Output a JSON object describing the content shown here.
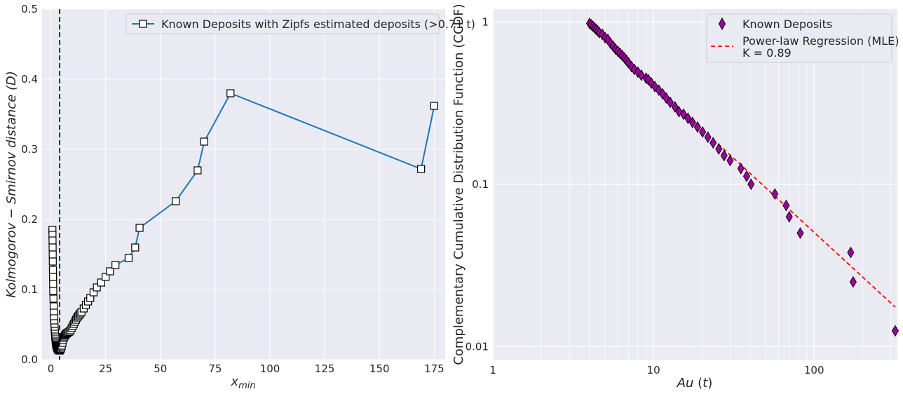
{
  "chart_data": [
    {
      "type": "line",
      "xlabel": "x_min",
      "ylabel": "Kolmogorov − Smirnov distance (D)",
      "xlim": [
        -4,
        180
      ],
      "ylim": [
        0,
        0.5
      ],
      "xticks": [
        0,
        25,
        50,
        75,
        100,
        125,
        150,
        175
      ],
      "yticks": [
        0.0,
        0.1,
        0.2,
        0.3,
        0.4,
        0.5
      ],
      "grid": true,
      "legend_position": "top-right",
      "vline": {
        "x": 4.0,
        "style": "dashed",
        "color": "#0000cc"
      },
      "series": [
        {
          "name": "Known Deposits with Zipfs estimated deposits (>0.71 t)",
          "color": "#1f77b4",
          "marker": "square",
          "x": [
            0.72,
            0.75,
            0.78,
            0.82,
            0.86,
            0.9,
            0.95,
            1.0,
            1.05,
            1.1,
            1.2,
            1.3,
            1.4,
            1.5,
            1.6,
            1.7,
            1.8,
            1.9,
            2.0,
            2.1,
            2.2,
            2.3,
            2.4,
            2.5,
            2.6,
            2.7,
            2.8,
            2.9,
            3.0,
            3.1,
            3.2,
            3.3,
            3.4,
            3.5,
            3.6,
            3.8,
            4.0,
            4.2,
            4.4,
            4.6,
            4.8,
            5.0,
            5.3,
            5.6,
            5.9,
            6.2,
            6.5,
            6.8,
            7.1,
            7.5,
            8.0,
            8.5,
            9.0,
            9.5,
            10.0,
            10.5,
            11.0,
            11.5,
            12.0,
            12.5,
            13.0,
            13.5,
            14.0,
            15.0,
            16.0,
            17.0,
            18.0,
            19.5,
            21.0,
            23.0,
            25.0,
            27.0,
            29.5,
            35.5,
            38.5,
            40.5,
            57.0,
            67.0,
            70.0,
            82.0,
            169.0,
            175.0
          ],
          "y": [
            0.185,
            0.178,
            0.17,
            0.16,
            0.15,
            0.14,
            0.128,
            0.118,
            0.108,
            0.098,
            0.087,
            0.076,
            0.067,
            0.059,
            0.052,
            0.046,
            0.041,
            0.037,
            0.033,
            0.03,
            0.027,
            0.025,
            0.023,
            0.021,
            0.02,
            0.019,
            0.018,
            0.017,
            0.016,
            0.016,
            0.015,
            0.015,
            0.014,
            0.014,
            0.014,
            0.013,
            0.013,
            0.014,
            0.015,
            0.016,
            0.018,
            0.02,
            0.024,
            0.028,
            0.031,
            0.033,
            0.035,
            0.036,
            0.037,
            0.038,
            0.039,
            0.04,
            0.042,
            0.045,
            0.048,
            0.051,
            0.054,
            0.057,
            0.06,
            0.062,
            0.064,
            0.066,
            0.068,
            0.073,
            0.078,
            0.083,
            0.088,
            0.096,
            0.103,
            0.11,
            0.118,
            0.126,
            0.135,
            0.145,
            0.16,
            0.188,
            0.226,
            0.27,
            0.311,
            0.38,
            0.272,
            0.362
          ]
        }
      ]
    },
    {
      "type": "scatter",
      "xlabel": "Au (t)",
      "ylabel": "Complementary Cumulative Distribution Function (CCDF)",
      "xscale": "log",
      "yscale": "log",
      "xlim": [
        1,
        330
      ],
      "ylim": [
        0.0083,
        1.2
      ],
      "xticks": [
        1,
        10,
        100
      ],
      "xtick_labels": [
        "1",
        "10",
        "100"
      ],
      "yticks": [
        0.01,
        0.1,
        1
      ],
      "ytick_labels": [
        "0.01",
        "0.1",
        "1"
      ],
      "grid": true,
      "legend_position": "top-right",
      "series": [
        {
          "name": "Known Deposits",
          "marker": "thin-diamond",
          "color": "#9b009b",
          "x": [
            4.0,
            4.1,
            4.2,
            4.3,
            4.4,
            4.5,
            4.6,
            4.8,
            5.0,
            5.2,
            5.4,
            5.6,
            5.8,
            6.0,
            6.2,
            6.4,
            6.6,
            6.8,
            7.0,
            7.3,
            7.6,
            8.0,
            8.4,
            9.0,
            9.3,
            9.7,
            10.2,
            10.8,
            11.4,
            12.0,
            12.7,
            13.6,
            14.4,
            15.4,
            16.4,
            17.5,
            18.8,
            20.2,
            21.8,
            23.5,
            25.5,
            27.5,
            30.0,
            35.0,
            38.0,
            40.5,
            57.0,
            67.0,
            70.0,
            82.0,
            169.0,
            175.0,
            320.0
          ],
          "y": [
            0.98,
            0.96,
            0.94,
            0.92,
            0.9,
            0.88,
            0.86,
            0.84,
            0.8,
            0.78,
            0.74,
            0.71,
            0.68,
            0.66,
            0.64,
            0.62,
            0.6,
            0.58,
            0.56,
            0.53,
            0.51,
            0.49,
            0.47,
            0.45,
            0.44,
            0.42,
            0.4,
            0.38,
            0.36,
            0.34,
            0.32,
            0.3,
            0.28,
            0.27,
            0.255,
            0.24,
            0.225,
            0.21,
            0.195,
            0.18,
            0.165,
            0.15,
            0.14,
            0.125,
            0.112,
            0.1,
            0.087,
            0.074,
            0.063,
            0.05,
            0.038,
            0.025,
            0.0125
          ]
        },
        {
          "name": "Power-law Regression (MLE)\nK = 0.89",
          "type": "line",
          "style": "dashed",
          "color": "#ff0000",
          "x": [
            15.0,
            320.0
          ],
          "y": [
            0.285,
            0.0175
          ]
        }
      ]
    }
  ]
}
